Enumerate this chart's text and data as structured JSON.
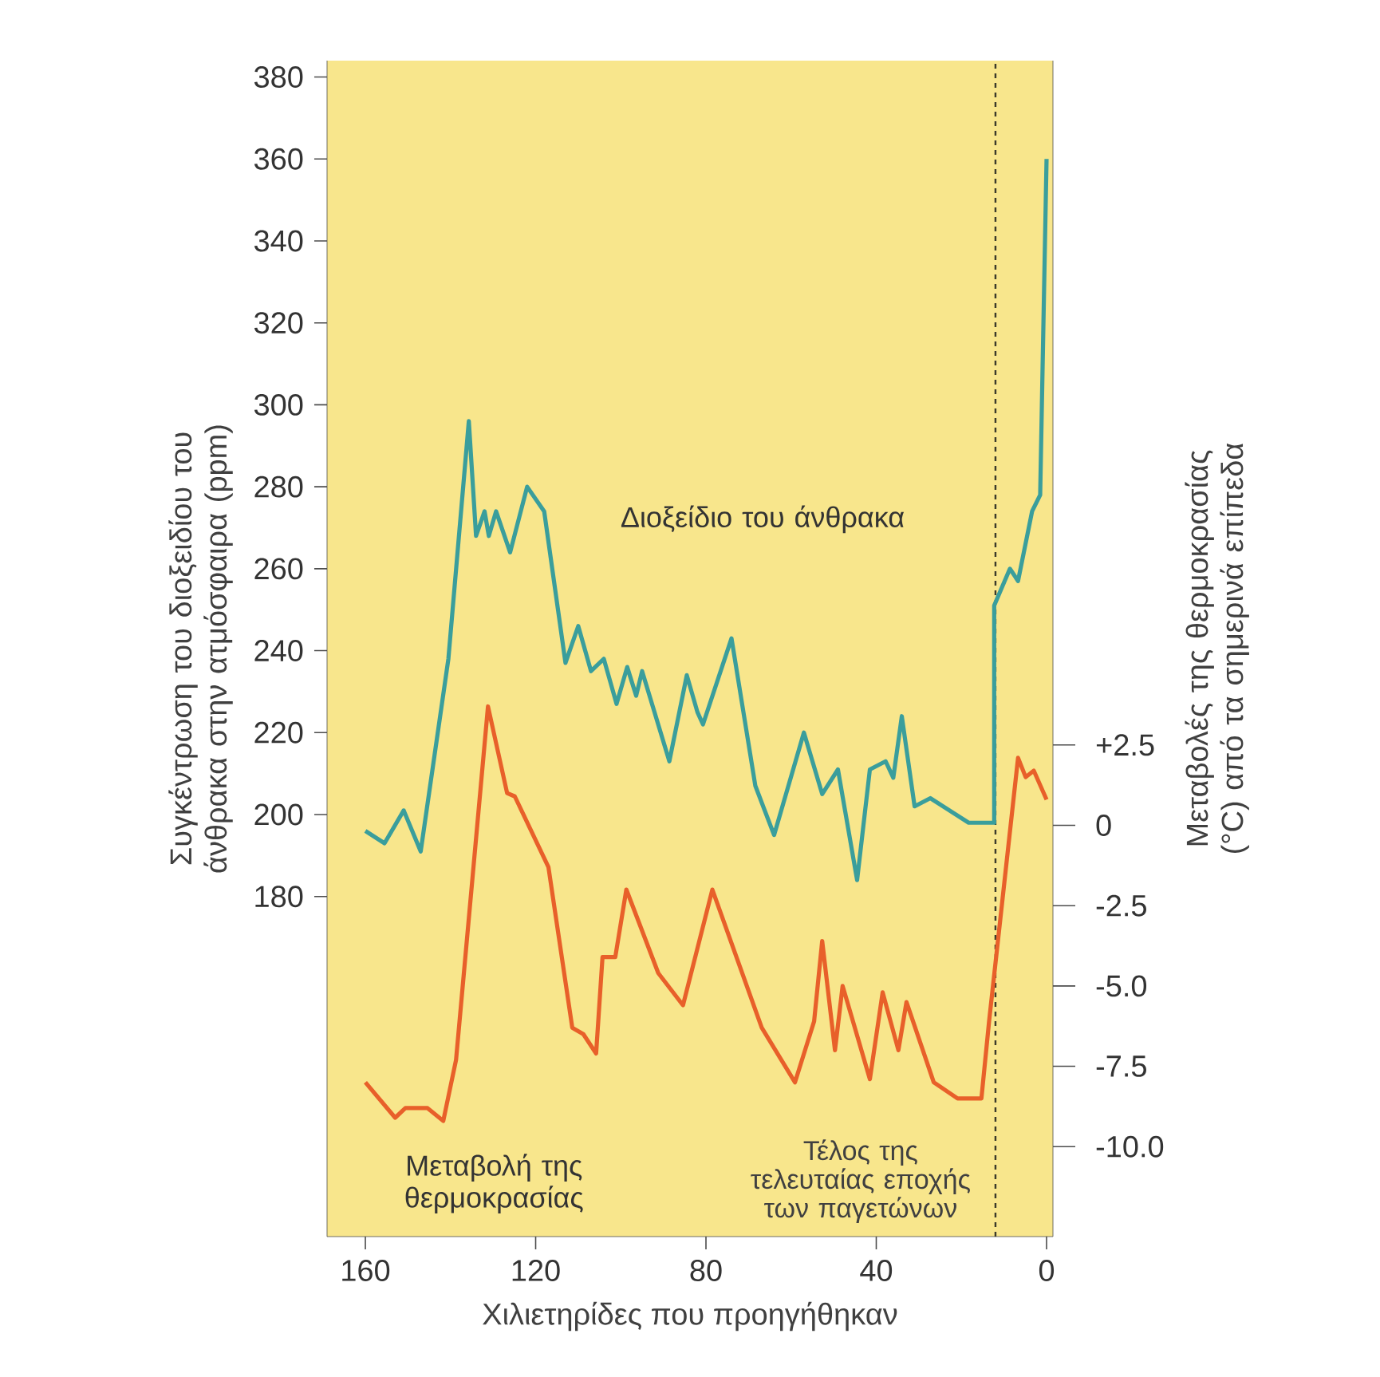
{
  "chart_data": {
    "type": "line",
    "xlabel": "Χιλιετηρίδες που προηγήθηκαν",
    "ylabel": "Συγκέντρωση του διοξειδίου του άνθρακα στην ατμόσφαιρα (ppm)",
    "y2label": "Μεταβολές της θερμοκρασίας (°C) από τα σημερινά επίπεδα",
    "xlim": [
      169,
      -1.5
    ],
    "xticks": [
      160,
      120,
      80,
      40,
      0
    ],
    "ylim": [
      97,
      384
    ],
    "yticks": [
      180,
      200,
      220,
      240,
      260,
      280,
      300,
      320,
      340,
      360,
      380
    ],
    "y2lim": [
      -12.8,
      23.8
    ],
    "y2ticks": [
      {
        "value": 2.5,
        "label": "+2.5"
      },
      0,
      -2.5,
      {
        "value": -5,
        "label": "-5.0"
      },
      -7.5,
      {
        "value": -10,
        "label": "-10.0"
      }
    ],
    "grid": false,
    "marker": "none",
    "line_style": "solid",
    "series": [
      {
        "name": "Διοξείδιο του άνθρακα",
        "color": "#3a9e9c",
        "x": [
          160,
          155.5,
          151,
          147,
          140.5,
          135.7,
          134,
          132,
          131,
          129.3,
          126,
          122,
          118,
          113,
          110,
          107,
          104,
          101,
          98.5,
          96.4,
          95,
          88.6,
          84.5,
          82,
          80.7,
          74,
          68.4,
          64,
          57,
          52.7,
          49,
          44.5,
          41.5,
          37.8,
          36,
          34,
          31,
          27.3,
          18.3,
          12.3,
          12.3,
          8.6,
          6.7,
          3.4,
          1.5,
          0
        ],
        "values": [
          196,
          193,
          201,
          191,
          238,
          296,
          268,
          274,
          268,
          274,
          264,
          280,
          274,
          237,
          246,
          235,
          238,
          227,
          236,
          229,
          235,
          213,
          234,
          225,
          222,
          243,
          207,
          195,
          220,
          205,
          211,
          184,
          211,
          213,
          209,
          224,
          202,
          204,
          198,
          198,
          251,
          260,
          257,
          274,
          278,
          360
        ]
      },
      {
        "name": "Μεταβολή της θερμοκρασίας",
        "color": "#e8602a",
        "axis": "y2",
        "x": [
          160,
          153,
          150.6,
          145.4,
          141.7,
          138.7,
          131.2,
          126.7,
          124.9,
          117,
          111.4,
          108.8,
          105.8,
          104.3,
          101.3,
          98.7,
          91.2,
          85.4,
          78.5,
          66.9,
          59.1,
          54.6,
          52.7,
          49.7,
          47.9,
          41.5,
          38.5,
          34.8,
          32.9,
          26.5,
          20.9,
          15.3,
          13.5,
          6.7,
          4.9,
          3,
          0
        ],
        "values": [
          -8.0,
          -9.1,
          -8.8,
          -8.8,
          -9.2,
          -7.3,
          3.7,
          1.0,
          0.9,
          -1.3,
          -6.3,
          -6.5,
          -7.1,
          -4.1,
          -4.1,
          -2.0,
          -4.6,
          -5.6,
          -2.0,
          -6.3,
          -8.0,
          -6.1,
          -3.6,
          -7.0,
          -5.0,
          -7.9,
          -5.2,
          -7.0,
          -5.5,
          -8.0,
          -8.5,
          -8.5,
          -6.1,
          2.1,
          1.5,
          1.7,
          0.8
        ]
      }
    ],
    "ref_lines": [
      {
        "axis": "x",
        "value": 12,
        "label": "Τέλος της τελευταίας εποχής των παγετώνων",
        "color": "#3a3a2a",
        "line_style": "dashed"
      }
    ]
  }
}
